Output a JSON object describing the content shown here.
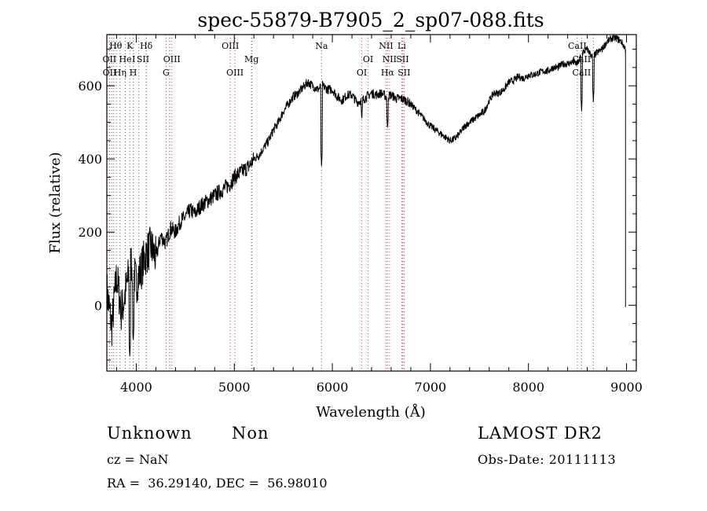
{
  "chart_data": {
    "type": "line",
    "title": "spec-55879-B7905_2_sp07-088.fits",
    "xlabel": "Wavelength (Å)",
    "ylabel": "Flux (relative)",
    "xlim": [
      3700,
      9100
    ],
    "ylim": [
      -180,
      740
    ],
    "x_ticks": [
      4000,
      5000,
      6000,
      7000,
      8000,
      9000
    ],
    "y_ticks": [
      0,
      200,
      400,
      600
    ],
    "grid": false,
    "series": [
      {
        "color": "#000000",
        "x": [
          3700,
          3750,
          3800,
          3850,
          3900,
          3950,
          4000,
          4050,
          4100,
          4150,
          4200,
          4250,
          4300,
          4350,
          4400,
          4450,
          4500,
          4550,
          4600,
          4650,
          4700,
          4750,
          4800,
          4850,
          4900,
          4950,
          5000,
          5050,
          5100,
          5150,
          5200,
          5250,
          5300,
          5350,
          5400,
          5450,
          5500,
          5550,
          5600,
          5650,
          5700,
          5750,
          5800,
          5850,
          5900,
          5950,
          6000,
          6050,
          6100,
          6150,
          6200,
          6250,
          6300,
          6350,
          6400,
          6450,
          6500,
          6550,
          6600,
          6650,
          6700,
          6750,
          6800,
          6850,
          6900,
          6950,
          7000,
          7050,
          7100,
          7150,
          7200,
          7250,
          7300,
          7350,
          7400,
          7450,
          7500,
          7550,
          7600,
          7650,
          7700,
          7750,
          7800,
          7850,
          7900,
          7950,
          8000,
          8050,
          8100,
          8150,
          8200,
          8250,
          8300,
          8350,
          8400,
          8450,
          8500,
          8550,
          8600,
          8650,
          8700,
          8750,
          8800,
          8850,
          8900,
          8950,
          8990
        ],
        "y": [
          40,
          -60,
          80,
          -20,
          50,
          120,
          60,
          100,
          140,
          160,
          130,
          190,
          170,
          210,
          200,
          230,
          240,
          260,
          250,
          270,
          280,
          290,
          300,
          310,
          320,
          330,
          350,
          360,
          370,
          380,
          400,
          410,
          430,
          450,
          480,
          500,
          530,
          550,
          570,
          580,
          595,
          610,
          600,
          590,
          600,
          590,
          590,
          570,
          560,
          575,
          575,
          555,
          560,
          570,
          580,
          575,
          580,
          570,
          575,
          565,
          565,
          560,
          550,
          535,
          520,
          505,
          490,
          480,
          470,
          460,
          450,
          455,
          470,
          490,
          500,
          510,
          520,
          530,
          560,
          580,
          580,
          590,
          610,
          615,
          625,
          620,
          630,
          630,
          635,
          640,
          640,
          650,
          650,
          660,
          660,
          665,
          660,
          690,
          700,
          680,
          690,
          700,
          720,
          730,
          730,
          720,
          700
        ],
        "features": [
          {
            "x": 3934,
            "y": -140
          },
          {
            "x": 3969,
            "y": -100
          },
          {
            "x": 5890,
            "y": 380
          },
          {
            "x": 6300,
            "y": 505
          },
          {
            "x": 6563,
            "y": 480
          },
          {
            "x": 8542,
            "y": 530
          },
          {
            "x": 8662,
            "y": 555
          }
        ]
      }
    ],
    "lines": {
      "emission": [
        3727,
        3729,
        3889,
        3970,
        4102,
        4341,
        4363,
        4959,
        5007,
        5180,
        6300,
        6364,
        6548,
        6563,
        6583,
        6708,
        6716,
        6731
      ],
      "absorption": [
        3750,
        3771,
        3797,
        3835,
        3889,
        3934,
        3969,
        4026,
        4102,
        4304,
        4340,
        5175,
        5890,
        8498,
        8542,
        8662
      ]
    },
    "line_labels": [
      {
        "text": "Hθ",
        "x": 3790,
        "row": 1
      },
      {
        "text": "K",
        "x": 3934,
        "row": 1
      },
      {
        "text": "Hδ",
        "x": 4102,
        "row": 1
      },
      {
        "text": "OII",
        "x": 3727,
        "row": 2
      },
      {
        "text": "He",
        "x": 3889,
        "row": 2
      },
      {
        "text": "I",
        "x": 3975,
        "row": 2
      },
      {
        "text": "SII",
        "x": 4068,
        "row": 2
      },
      {
        "text": "OII",
        "x": 3728,
        "row": 3
      },
      {
        "text": "Hη",
        "x": 3835,
        "row": 3
      },
      {
        "text": "H",
        "x": 3969,
        "row": 3
      },
      {
        "text": "OIII",
        "x": 4363,
        "row": 2
      },
      {
        "text": "G",
        "x": 4304,
        "row": 3
      },
      {
        "text": "OIII",
        "x": 4959,
        "row": 1
      },
      {
        "text": "Mg",
        "x": 5175,
        "row": 2
      },
      {
        "text": "OIII",
        "x": 5007,
        "row": 3
      },
      {
        "text": "Na",
        "x": 5890,
        "row": 1
      },
      {
        "text": "OI",
        "x": 6364,
        "row": 2
      },
      {
        "text": "OI",
        "x": 6300,
        "row": 3
      },
      {
        "text": "NII",
        "x": 6548,
        "row": 1
      },
      {
        "text": "Li",
        "x": 6708,
        "row": 1
      },
      {
        "text": "NII",
        "x": 6583,
        "row": 2
      },
      {
        "text": "SII",
        "x": 6716,
        "row": 2
      },
      {
        "text": "Hα",
        "x": 6563,
        "row": 3
      },
      {
        "text": "SII",
        "x": 6731,
        "row": 3
      },
      {
        "text": "CaII",
        "x": 8498,
        "row": 1
      },
      {
        "text": "CaII",
        "x": 8542,
        "row": 2
      },
      {
        "text": "CaII",
        "x": 8542,
        "row": 3
      }
    ]
  },
  "info": {
    "object_class": "Unknown",
    "object_subclass": "Non",
    "survey": "LAMOST DR2",
    "cz": "cz = NaN",
    "obs_date": "Obs-Date: 20111113",
    "ra_dec": "RA =  36.29140, DEC =  56.98010"
  }
}
